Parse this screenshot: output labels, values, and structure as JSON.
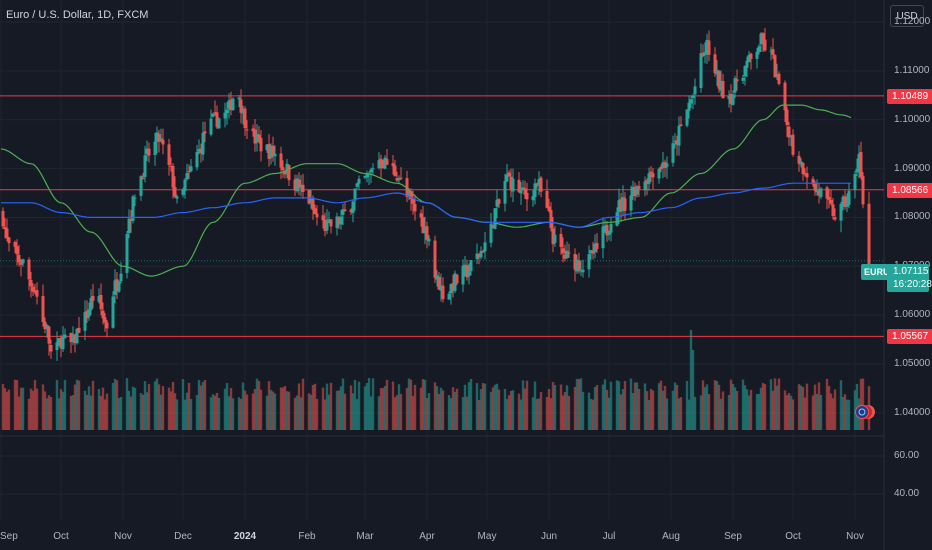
{
  "header": {
    "title": "Euro / U.S. Dollar, 1D, FXCM",
    "currency": "USD"
  },
  "colors": {
    "background": "#161a25",
    "up": "#26a69a",
    "down": "#ef5350",
    "ma_green": "#4caf50",
    "ma_blue": "#2962ff",
    "hline": "#f23645"
  },
  "chart_data": {
    "type": "candlestick",
    "symbol": "EURUSD",
    "timeframe": "1D",
    "price_axis": {
      "ticks": [
        "1.12000",
        "1.11000",
        "1.10000",
        "1.09000",
        "1.08000",
        "1.07000",
        "1.06000",
        "1.05000",
        "1.04000"
      ],
      "tick_values": [
        1.12,
        1.11,
        1.1,
        1.09,
        1.08,
        1.07,
        1.06,
        1.05,
        1.04
      ],
      "range": [
        1.0365,
        1.1245
      ]
    },
    "indicator_axis": {
      "ticks": [
        "60.00",
        "40.00"
      ],
      "tick_values": [
        60,
        40
      ]
    },
    "time_axis": {
      "labels": [
        "Sep",
        "Oct",
        "Nov",
        "Dec",
        "2024",
        "Feb",
        "Mar",
        "Apr",
        "May",
        "Jun",
        "Jul",
        "Aug",
        "Sep",
        "Oct",
        "Nov"
      ],
      "bold": [
        false,
        false,
        false,
        false,
        true,
        false,
        false,
        false,
        false,
        false,
        false,
        false,
        false,
        false,
        false
      ],
      "day_index": [
        0,
        30,
        61,
        91,
        122,
        153,
        182,
        213,
        243,
        274,
        304,
        335,
        366,
        396,
        427
      ]
    },
    "horizontal_levels": [
      {
        "label": "1.10489",
        "value": 1.10489
      },
      {
        "label": "1.08566",
        "value": 1.08566
      },
      {
        "label": "1.05567",
        "value": 1.05567
      }
    ],
    "current": {
      "pair": "EURUSD",
      "price": "1.07115",
      "countdown": "16:20:28",
      "value": 1.07115
    },
    "close_anchors": [
      [
        0,
        1.081
      ],
      [
        4,
        1.074
      ],
      [
        10,
        1.071
      ],
      [
        16,
        1.066
      ],
      [
        22,
        1.058
      ],
      [
        26,
        1.051
      ],
      [
        30,
        1.055
      ],
      [
        35,
        1.054
      ],
      [
        41,
        1.059
      ],
      [
        47,
        1.064
      ],
      [
        53,
        1.058
      ],
      [
        57,
        1.066
      ],
      [
        61,
        1.071
      ],
      [
        64,
        1.08
      ],
      [
        69,
        1.088
      ],
      [
        74,
        1.093
      ],
      [
        79,
        1.096
      ],
      [
        84,
        1.09
      ],
      [
        89,
        1.082
      ],
      [
        93,
        1.088
      ],
      [
        98,
        1.093
      ],
      [
        103,
        1.098
      ],
      [
        107,
        1.1
      ],
      [
        112,
        1.101
      ],
      [
        118,
        1.106
      ],
      [
        122,
        1.1
      ],
      [
        127,
        1.096
      ],
      [
        132,
        1.094
      ],
      [
        137,
        1.093
      ],
      [
        142,
        1.09
      ],
      [
        147,
        1.087
      ],
      [
        153,
        1.084
      ],
      [
        158,
        1.08
      ],
      [
        163,
        1.078
      ],
      [
        168,
        1.079
      ],
      [
        173,
        1.081
      ],
      [
        178,
        1.086
      ],
      [
        183,
        1.088
      ],
      [
        188,
        1.092
      ],
      [
        193,
        1.091
      ],
      [
        198,
        1.089
      ],
      [
        203,
        1.084
      ],
      [
        208,
        1.081
      ],
      [
        213,
        1.077
      ],
      [
        218,
        1.067
      ],
      [
        222,
        1.064
      ],
      [
        227,
        1.067
      ],
      [
        233,
        1.069
      ],
      [
        238,
        1.072
      ],
      [
        243,
        1.075
      ],
      [
        248,
        1.082
      ],
      [
        253,
        1.088
      ],
      [
        258,
        1.086
      ],
      [
        263,
        1.084
      ],
      [
        268,
        1.087
      ],
      [
        273,
        1.081
      ],
      [
        277,
        1.075
      ],
      [
        282,
        1.072
      ],
      [
        287,
        1.071
      ],
      [
        292,
        1.07
      ],
      [
        297,
        1.073
      ],
      [
        302,
        1.077
      ],
      [
        307,
        1.082
      ],
      [
        312,
        1.083
      ],
      [
        317,
        1.086
      ],
      [
        322,
        1.088
      ],
      [
        327,
        1.09
      ],
      [
        332,
        1.091
      ],
      [
        336,
        1.094
      ],
      [
        340,
        1.098
      ],
      [
        345,
        1.104
      ],
      [
        350,
        1.112
      ],
      [
        353,
        1.115
      ],
      [
        357,
        1.109
      ],
      [
        361,
        1.106
      ],
      [
        365,
        1.105
      ],
      [
        370,
        1.11
      ],
      [
        375,
        1.112
      ],
      [
        380,
        1.116
      ],
      [
        385,
        1.113
      ],
      [
        389,
        1.107
      ],
      [
        393,
        1.099
      ],
      [
        397,
        1.093
      ],
      [
        402,
        1.09
      ],
      [
        406,
        1.086
      ],
      [
        410,
        1.085
      ],
      [
        414,
        1.082
      ],
      [
        418,
        1.08
      ],
      [
        422,
        1.083
      ],
      [
        426,
        1.086
      ],
      [
        429,
        1.093
      ],
      [
        431,
        1.082
      ],
      [
        433,
        1.078
      ],
      [
        434,
        1.071
      ]
    ],
    "ma_green_anchors": [
      [
        0,
        1.094
      ],
      [
        15,
        1.091
      ],
      [
        30,
        1.083
      ],
      [
        45,
        1.077
      ],
      [
        61,
        1.07
      ],
      [
        75,
        1.068
      ],
      [
        91,
        1.07
      ],
      [
        106,
        1.079
      ],
      [
        122,
        1.087
      ],
      [
        137,
        1.089
      ],
      [
        153,
        1.091
      ],
      [
        168,
        1.091
      ],
      [
        182,
        1.089
      ],
      [
        198,
        1.087
      ],
      [
        213,
        1.083
      ],
      [
        228,
        1.08
      ],
      [
        243,
        1.079
      ],
      [
        258,
        1.078
      ],
      [
        274,
        1.079
      ],
      [
        289,
        1.078
      ],
      [
        304,
        1.079
      ],
      [
        320,
        1.08
      ],
      [
        335,
        1.085
      ],
      [
        350,
        1.089
      ],
      [
        366,
        1.094
      ],
      [
        381,
        1.1
      ],
      [
        391,
        1.103
      ],
      [
        400,
        1.103
      ],
      [
        410,
        1.102
      ],
      [
        420,
        1.101
      ],
      [
        434,
        1.099
      ]
    ],
    "ma_blue_anchors": [
      [
        0,
        1.083
      ],
      [
        15,
        1.083
      ],
      [
        30,
        1.081
      ],
      [
        45,
        1.08
      ],
      [
        61,
        1.08
      ],
      [
        76,
        1.08
      ],
      [
        91,
        1.081
      ],
      [
        106,
        1.082
      ],
      [
        122,
        1.083
      ],
      [
        137,
        1.084
      ],
      [
        153,
        1.084
      ],
      [
        168,
        1.083
      ],
      [
        182,
        1.084
      ],
      [
        198,
        1.085
      ],
      [
        213,
        1.083
      ],
      [
        228,
        1.08
      ],
      [
        243,
        1.079
      ],
      [
        258,
        1.079
      ],
      [
        274,
        1.079
      ],
      [
        289,
        1.078
      ],
      [
        304,
        1.08
      ],
      [
        320,
        1.081
      ],
      [
        335,
        1.082
      ],
      [
        350,
        1.084
      ],
      [
        366,
        1.085
      ],
      [
        381,
        1.086
      ],
      [
        396,
        1.087
      ],
      [
        410,
        1.087
      ],
      [
        420,
        1.087
      ],
      [
        434,
        1.087
      ]
    ]
  }
}
